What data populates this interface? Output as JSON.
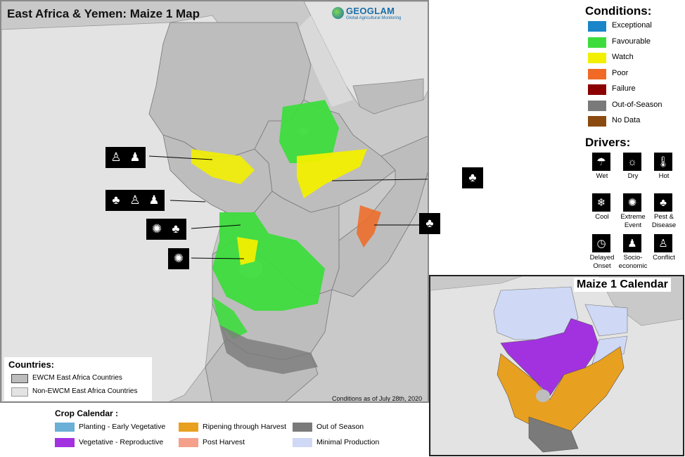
{
  "map": {
    "title": "East Africa & Yemen: Maize 1 Map",
    "logo_brand": "GEOGLAM",
    "logo_sub": "Global Agricultural Monitoring",
    "conditions_date": "Conditions as of July 28th, 2020"
  },
  "countries": {
    "title": "Countries:",
    "items": [
      {
        "label": "EWCM East Africa Countries",
        "color": "#bdbdbd"
      },
      {
        "label": "Non-EWCM East Africa Countries",
        "color": "#e3e3e3"
      }
    ]
  },
  "conditions": {
    "title": "Conditions:",
    "items": [
      {
        "label": "Exceptional",
        "color": "#1a85c8"
      },
      {
        "label": "Favourable",
        "color": "#3ddc3d"
      },
      {
        "label": "Watch",
        "color": "#f2ef00"
      },
      {
        "label": "Poor",
        "color": "#f06a25"
      },
      {
        "label": "Failure",
        "color": "#8b0000"
      },
      {
        "label": "Out-of-Season",
        "color": "#7a7a7a"
      },
      {
        "label": "No Data",
        "color": "#8a4a10"
      }
    ]
  },
  "drivers": {
    "title": "Drivers:",
    "items": [
      {
        "label": "Wet",
        "icon": "wet-icon"
      },
      {
        "label": "Dry",
        "icon": "dry-icon"
      },
      {
        "label": "Hot",
        "icon": "hot-icon"
      },
      {
        "label": "Cool",
        "icon": "cool-icon"
      },
      {
        "label": "Extreme Event",
        "icon": "extreme-event-icon"
      },
      {
        "label": "Pest & Disease",
        "icon": "pest-disease-icon"
      },
      {
        "label": "Delayed Onset",
        "icon": "delayed-onset-icon"
      },
      {
        "label": "Socio-economic",
        "icon": "socio-economic-icon"
      },
      {
        "label": "Conflict",
        "icon": "conflict-icon"
      }
    ]
  },
  "inset": {
    "title": "Maize 1 Calendar"
  },
  "crop_calendar": {
    "title": "Crop Calendar :",
    "items": [
      {
        "label": "Planting - Early Vegetative",
        "color": "#6baed6"
      },
      {
        "label": "Ripening through Harvest",
        "color": "#e8a020"
      },
      {
        "label": "Out of Season",
        "color": "#7a7a7a"
      },
      {
        "label": "Vegetative - Reproductive",
        "color": "#a232e0"
      },
      {
        "label": "Post Harvest",
        "color": "#f4a08a"
      },
      {
        "label": "Minimal Production",
        "color": "#cfd8f5"
      }
    ]
  }
}
